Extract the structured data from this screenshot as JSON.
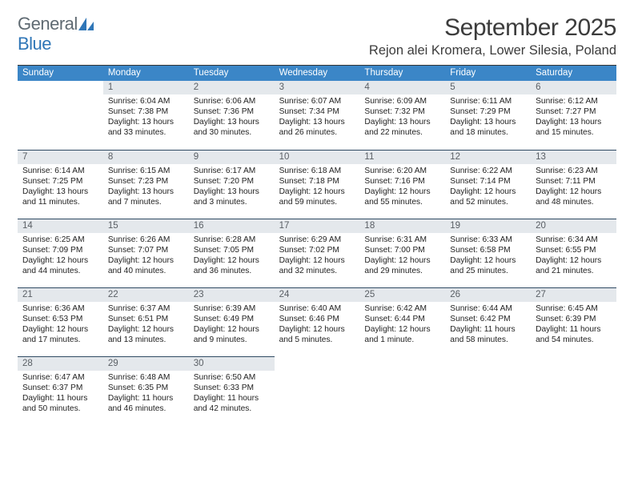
{
  "logo": {
    "word1": "General",
    "word2": "Blue"
  },
  "title": "September 2025",
  "location": "Rejon alei Kromera, Lower Silesia, Poland",
  "dow_bg": "#3b86c7",
  "days_of_week": [
    "Sunday",
    "Monday",
    "Tuesday",
    "Wednesday",
    "Thursday",
    "Friday",
    "Saturday"
  ],
  "weeks": [
    [
      {
        "n": "",
        "sunrise": "",
        "sunset": "",
        "daylight": ""
      },
      {
        "n": "1",
        "sunrise": "Sunrise: 6:04 AM",
        "sunset": "Sunset: 7:38 PM",
        "daylight": "Daylight: 13 hours and 33 minutes."
      },
      {
        "n": "2",
        "sunrise": "Sunrise: 6:06 AM",
        "sunset": "Sunset: 7:36 PM",
        "daylight": "Daylight: 13 hours and 30 minutes."
      },
      {
        "n": "3",
        "sunrise": "Sunrise: 6:07 AM",
        "sunset": "Sunset: 7:34 PM",
        "daylight": "Daylight: 13 hours and 26 minutes."
      },
      {
        "n": "4",
        "sunrise": "Sunrise: 6:09 AM",
        "sunset": "Sunset: 7:32 PM",
        "daylight": "Daylight: 13 hours and 22 minutes."
      },
      {
        "n": "5",
        "sunrise": "Sunrise: 6:11 AM",
        "sunset": "Sunset: 7:29 PM",
        "daylight": "Daylight: 13 hours and 18 minutes."
      },
      {
        "n": "6",
        "sunrise": "Sunrise: 6:12 AM",
        "sunset": "Sunset: 7:27 PM",
        "daylight": "Daylight: 13 hours and 15 minutes."
      }
    ],
    [
      {
        "n": "7",
        "sunrise": "Sunrise: 6:14 AM",
        "sunset": "Sunset: 7:25 PM",
        "daylight": "Daylight: 13 hours and 11 minutes."
      },
      {
        "n": "8",
        "sunrise": "Sunrise: 6:15 AM",
        "sunset": "Sunset: 7:23 PM",
        "daylight": "Daylight: 13 hours and 7 minutes."
      },
      {
        "n": "9",
        "sunrise": "Sunrise: 6:17 AM",
        "sunset": "Sunset: 7:20 PM",
        "daylight": "Daylight: 13 hours and 3 minutes."
      },
      {
        "n": "10",
        "sunrise": "Sunrise: 6:18 AM",
        "sunset": "Sunset: 7:18 PM",
        "daylight": "Daylight: 12 hours and 59 minutes."
      },
      {
        "n": "11",
        "sunrise": "Sunrise: 6:20 AM",
        "sunset": "Sunset: 7:16 PM",
        "daylight": "Daylight: 12 hours and 55 minutes."
      },
      {
        "n": "12",
        "sunrise": "Sunrise: 6:22 AM",
        "sunset": "Sunset: 7:14 PM",
        "daylight": "Daylight: 12 hours and 52 minutes."
      },
      {
        "n": "13",
        "sunrise": "Sunrise: 6:23 AM",
        "sunset": "Sunset: 7:11 PM",
        "daylight": "Daylight: 12 hours and 48 minutes."
      }
    ],
    [
      {
        "n": "14",
        "sunrise": "Sunrise: 6:25 AM",
        "sunset": "Sunset: 7:09 PM",
        "daylight": "Daylight: 12 hours and 44 minutes."
      },
      {
        "n": "15",
        "sunrise": "Sunrise: 6:26 AM",
        "sunset": "Sunset: 7:07 PM",
        "daylight": "Daylight: 12 hours and 40 minutes."
      },
      {
        "n": "16",
        "sunrise": "Sunrise: 6:28 AM",
        "sunset": "Sunset: 7:05 PM",
        "daylight": "Daylight: 12 hours and 36 minutes."
      },
      {
        "n": "17",
        "sunrise": "Sunrise: 6:29 AM",
        "sunset": "Sunset: 7:02 PM",
        "daylight": "Daylight: 12 hours and 32 minutes."
      },
      {
        "n": "18",
        "sunrise": "Sunrise: 6:31 AM",
        "sunset": "Sunset: 7:00 PM",
        "daylight": "Daylight: 12 hours and 29 minutes."
      },
      {
        "n": "19",
        "sunrise": "Sunrise: 6:33 AM",
        "sunset": "Sunset: 6:58 PM",
        "daylight": "Daylight: 12 hours and 25 minutes."
      },
      {
        "n": "20",
        "sunrise": "Sunrise: 6:34 AM",
        "sunset": "Sunset: 6:55 PM",
        "daylight": "Daylight: 12 hours and 21 minutes."
      }
    ],
    [
      {
        "n": "21",
        "sunrise": "Sunrise: 6:36 AM",
        "sunset": "Sunset: 6:53 PM",
        "daylight": "Daylight: 12 hours and 17 minutes."
      },
      {
        "n": "22",
        "sunrise": "Sunrise: 6:37 AM",
        "sunset": "Sunset: 6:51 PM",
        "daylight": "Daylight: 12 hours and 13 minutes."
      },
      {
        "n": "23",
        "sunrise": "Sunrise: 6:39 AM",
        "sunset": "Sunset: 6:49 PM",
        "daylight": "Daylight: 12 hours and 9 minutes."
      },
      {
        "n": "24",
        "sunrise": "Sunrise: 6:40 AM",
        "sunset": "Sunset: 6:46 PM",
        "daylight": "Daylight: 12 hours and 5 minutes."
      },
      {
        "n": "25",
        "sunrise": "Sunrise: 6:42 AM",
        "sunset": "Sunset: 6:44 PM",
        "daylight": "Daylight: 12 hours and 1 minute."
      },
      {
        "n": "26",
        "sunrise": "Sunrise: 6:44 AM",
        "sunset": "Sunset: 6:42 PM",
        "daylight": "Daylight: 11 hours and 58 minutes."
      },
      {
        "n": "27",
        "sunrise": "Sunrise: 6:45 AM",
        "sunset": "Sunset: 6:39 PM",
        "daylight": "Daylight: 11 hours and 54 minutes."
      }
    ],
    [
      {
        "n": "28",
        "sunrise": "Sunrise: 6:47 AM",
        "sunset": "Sunset: 6:37 PM",
        "daylight": "Daylight: 11 hours and 50 minutes."
      },
      {
        "n": "29",
        "sunrise": "Sunrise: 6:48 AM",
        "sunset": "Sunset: 6:35 PM",
        "daylight": "Daylight: 11 hours and 46 minutes."
      },
      {
        "n": "30",
        "sunrise": "Sunrise: 6:50 AM",
        "sunset": "Sunset: 6:33 PM",
        "daylight": "Daylight: 11 hours and 42 minutes."
      },
      {
        "n": "",
        "sunrise": "",
        "sunset": "",
        "daylight": ""
      },
      {
        "n": "",
        "sunrise": "",
        "sunset": "",
        "daylight": ""
      },
      {
        "n": "",
        "sunrise": "",
        "sunset": "",
        "daylight": ""
      },
      {
        "n": "",
        "sunrise": "",
        "sunset": "",
        "daylight": ""
      }
    ]
  ]
}
